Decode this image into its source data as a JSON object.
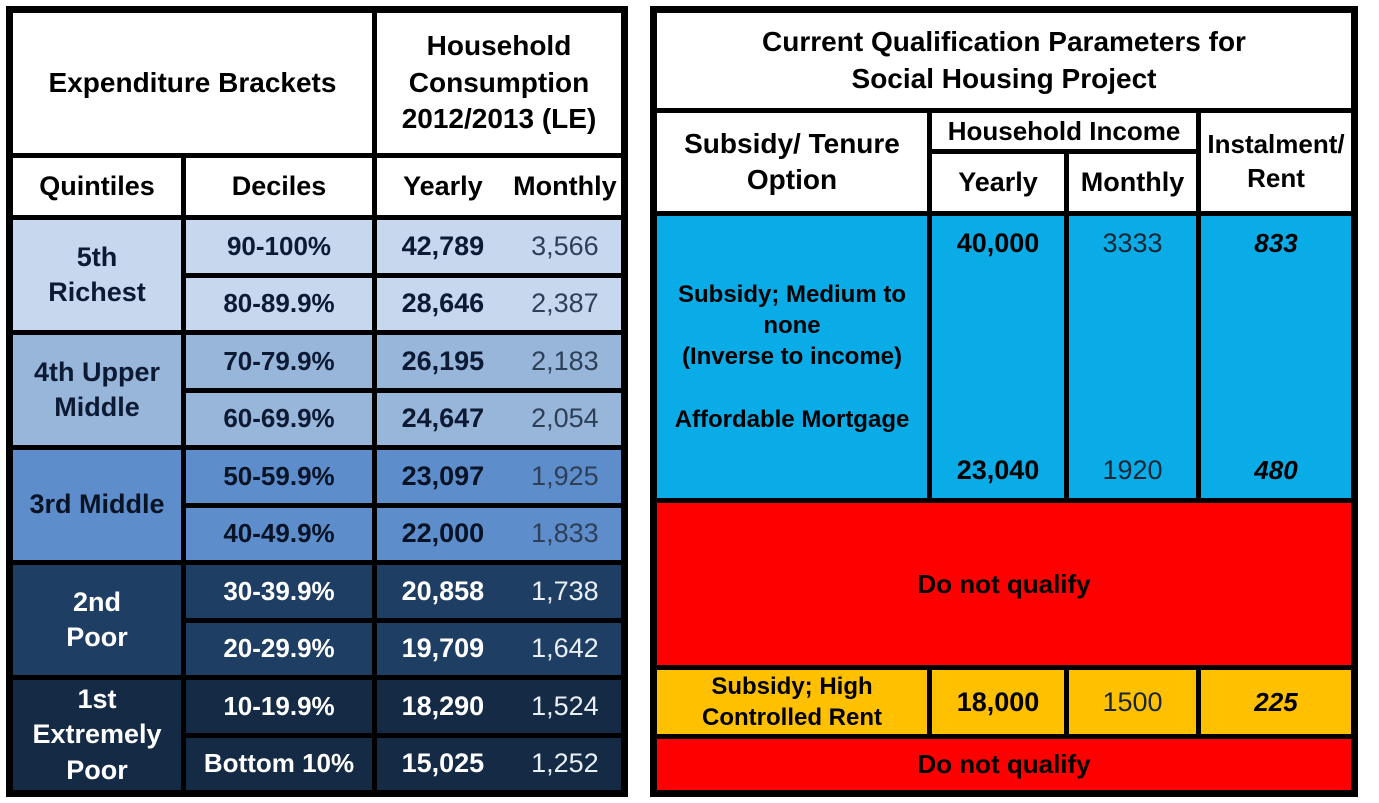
{
  "colors": {
    "border": "#000000",
    "quintile_5_bg": "#C7D7ED",
    "quintile_4_bg": "#98B5DA",
    "quintile_3_bg": "#5E8DCB",
    "quintile_2_bg": "#1F3E63",
    "quintile_1_bg": "#152A44",
    "qualify_bg": "#0AACE8",
    "not_qualify_bg": "#FE0000",
    "controlled_rent_bg": "#FFC000",
    "header_bg": "#FFFFFF"
  },
  "left_table": {
    "title": "Expenditure Brackets",
    "consumption_header": "Household\nConsumption\n2012/2013 (LE)",
    "col_quintiles": "Quintiles",
    "col_deciles": "Deciles",
    "col_yearly": "Yearly",
    "col_monthly": "Monthly",
    "groups": [
      {
        "quintile": "5th\nRichest",
        "rows": [
          {
            "decile": "90-100%",
            "yearly": "42,789",
            "monthly": "3,566"
          },
          {
            "decile": "80-89.9%",
            "yearly": "28,646",
            "monthly": "2,387"
          }
        ]
      },
      {
        "quintile": "4th Upper\nMiddle",
        "rows": [
          {
            "decile": "70-79.9%",
            "yearly": "26,195",
            "monthly": "2,183"
          },
          {
            "decile": "60-69.9%",
            "yearly": "24,647",
            "monthly": "2,054"
          }
        ]
      },
      {
        "quintile": "3rd Middle",
        "rows": [
          {
            "decile": "50-59.9%",
            "yearly": "23,097",
            "monthly": "1,925"
          },
          {
            "decile": "40-49.9%",
            "yearly": "22,000",
            "monthly": "1,833"
          }
        ]
      },
      {
        "quintile": "2nd\nPoor",
        "rows": [
          {
            "decile": "30-39.9%",
            "yearly": "20,858",
            "monthly": "1,738"
          },
          {
            "decile": "20-29.9%",
            "yearly": "19,709",
            "monthly": "1,642"
          }
        ]
      },
      {
        "quintile": "1st\nExtremely\nPoor",
        "rows": [
          {
            "decile": "10-19.9%",
            "yearly": "18,290",
            "monthly": "1,524"
          },
          {
            "decile": "Bottom 10%",
            "yearly": "15,025",
            "monthly": "1,252"
          }
        ]
      }
    ]
  },
  "right_table": {
    "title": "Current Qualification Parameters for\nSocial Housing Project",
    "col_option": "Subsidy/ Tenure\nOption",
    "col_household_income": "Household Income",
    "col_yearly": "Yearly",
    "col_monthly": "Monthly",
    "col_instalment": "Instalment/\nRent",
    "qualify_block": {
      "option": "Subsidy; Medium to\nnone\n(Inverse to income)\n\nAffordable Mortgage",
      "yearly_max": "40,000",
      "monthly_max": "3333",
      "rent_max": "833",
      "yearly_min": "23,040",
      "monthly_min": "1920",
      "rent_min": "480"
    },
    "do_not_qualify_1": "Do not qualify",
    "rent_row": {
      "option": "Subsidy; High\nControlled Rent",
      "yearly": "18,000",
      "monthly": "1500",
      "rent": "225"
    },
    "do_not_qualify_2": "Do not qualify"
  },
  "chart_data": [
    {
      "type": "table",
      "title": "Expenditure Brackets — Household Consumption 2012/2013 (LE)",
      "columns": [
        "Quintiles",
        "Deciles",
        "Yearly",
        "Monthly"
      ],
      "rows": [
        [
          "5th Richest",
          "90-100%",
          42789,
          3566
        ],
        [
          "5th Richest",
          "80-89.9%",
          28646,
          2387
        ],
        [
          "4th Upper Middle",
          "70-79.9%",
          26195,
          2183
        ],
        [
          "4th Upper Middle",
          "60-69.9%",
          24647,
          2054
        ],
        [
          "3rd Middle",
          "50-59.9%",
          23097,
          1925
        ],
        [
          "3rd Middle",
          "40-49.9%",
          22000,
          1833
        ],
        [
          "2nd Poor",
          "30-39.9%",
          20858,
          1738
        ],
        [
          "2nd Poor",
          "20-29.9%",
          19709,
          1642
        ],
        [
          "1st Extremely Poor",
          "10-19.9%",
          18290,
          1524
        ],
        [
          "1st Extremely Poor",
          "Bottom 10%",
          15025,
          1252
        ]
      ]
    },
    {
      "type": "table",
      "title": "Current Qualification Parameters for Social Housing Project",
      "columns": [
        "Subsidy/ Tenure Option",
        "Household Income Yearly",
        "Household Income Monthly",
        "Instalment/ Rent"
      ],
      "rows": [
        [
          "Subsidy; Medium to none (Inverse to income) / Affordable Mortgage — upper bound",
          40000,
          3333,
          833
        ],
        [
          "Subsidy; Medium to none (Inverse to income) / Affordable Mortgage — lower bound",
          23040,
          1920,
          480
        ],
        [
          "Do not qualify",
          null,
          null,
          null
        ],
        [
          "Subsidy; High Controlled Rent",
          18000,
          1500,
          225
        ],
        [
          "Do not qualify",
          null,
          null,
          null
        ]
      ]
    }
  ]
}
